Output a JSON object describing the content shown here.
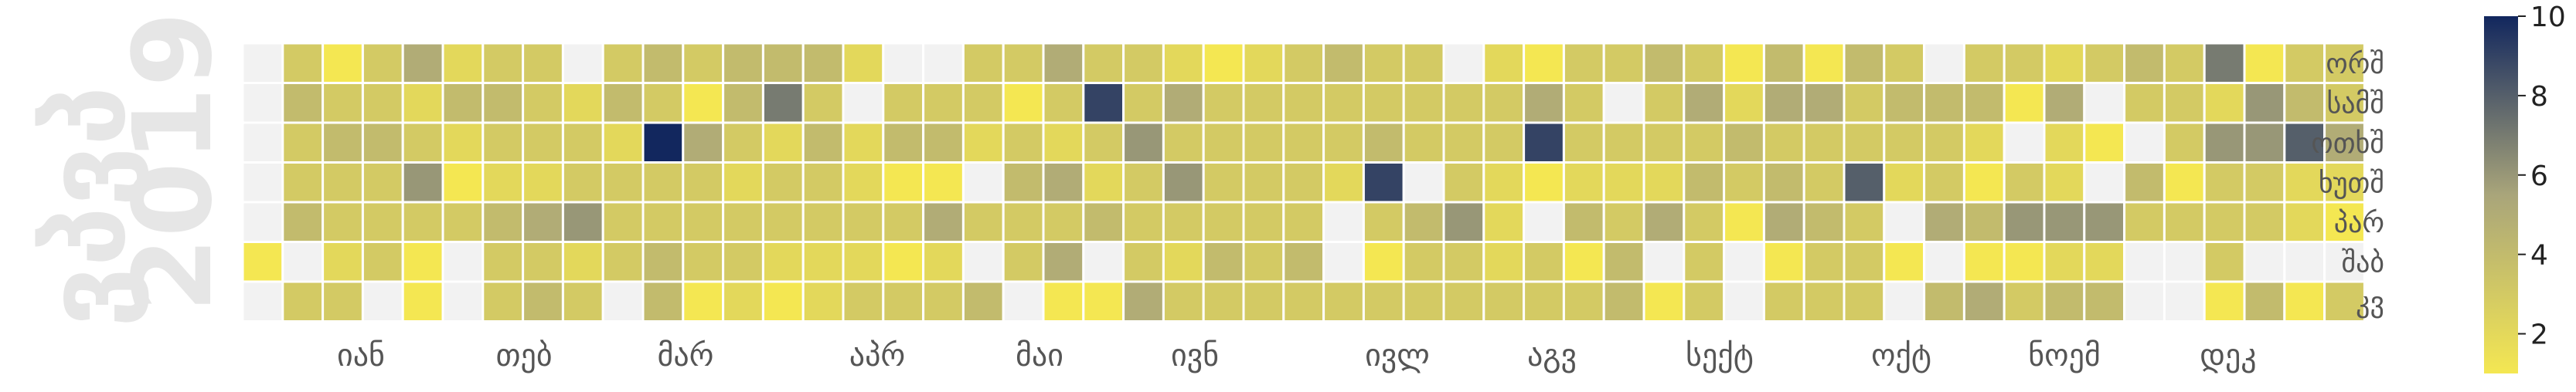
{
  "chart_data": {
    "type": "heatmap",
    "title": "ვპვპ 2019",
    "year_label": "2019",
    "watermark": "ვპვპ",
    "month_labels": [
      "იან",
      "თებ",
      "მარ",
      "აპრ",
      "მაი",
      "ივნ",
      "ივლ",
      "აგვ",
      "სექტ",
      "ოქტ",
      "ნოემ",
      "დეკ"
    ],
    "day_labels": [
      "ორშ",
      "სამშ",
      "ოთხშ",
      "ხუთშ",
      "პარ",
      "შაბ",
      "კვ"
    ],
    "colorbar": {
      "min": 1,
      "max": 10,
      "ticks": [
        2,
        4,
        6,
        8,
        10
      ]
    },
    "colors": {
      "empty": "#f2f2f2",
      "low": "#f4e752",
      "mid": "#a9a57a",
      "high": "#12275e"
    },
    "legend_position": "right",
    "grid": false,
    "weeks": 53,
    "values": [
      [
        null,
        3,
        1,
        3,
        5,
        2,
        3,
        3,
        null,
        3,
        4,
        3,
        4,
        4,
        4,
        2,
        null,
        null,
        3,
        3,
        5,
        3,
        3,
        2,
        1,
        2,
        3,
        4,
        3,
        3,
        null,
        2,
        1,
        3,
        3,
        4,
        3,
        1,
        4,
        1,
        4,
        3,
        null,
        3,
        3,
        2,
        3,
        4,
        3,
        7,
        1,
        3,
        3
      ],
      [
        null,
        4,
        3,
        3,
        2,
        4,
        4,
        3,
        2,
        4,
        3,
        1,
        4,
        7,
        3,
        null,
        3,
        3,
        3,
        1,
        3,
        9,
        3,
        5,
        3,
        3,
        3,
        3,
        3,
        3,
        3,
        3,
        5,
        3,
        null,
        3,
        5,
        2,
        5,
        5,
        3,
        4,
        4,
        4,
        1,
        5,
        null,
        3,
        3,
        2,
        6,
        4,
        3
      ],
      [
        null,
        3,
        4,
        4,
        3,
        2,
        3,
        3,
        3,
        2,
        10,
        5,
        3,
        2,
        4,
        2,
        4,
        4,
        2,
        3,
        2,
        3,
        6,
        3,
        3,
        3,
        3,
        3,
        4,
        3,
        3,
        3,
        9,
        3,
        3,
        3,
        3,
        4,
        3,
        3,
        3,
        3,
        3,
        2,
        null,
        2,
        1,
        null,
        3,
        6,
        6,
        8,
        5
      ],
      [
        null,
        3,
        3,
        3,
        6,
        1,
        2,
        2,
        3,
        3,
        3,
        3,
        2,
        3,
        3,
        2,
        1,
        1,
        null,
        4,
        5,
        2,
        3,
        6,
        3,
        3,
        3,
        2,
        9,
        null,
        3,
        2,
        1,
        2,
        2,
        2,
        4,
        3,
        4,
        3,
        8,
        2,
        3,
        1,
        3,
        2,
        null,
        4,
        1,
        3,
        3,
        2,
        2
      ],
      [
        null,
        4,
        3,
        3,
        3,
        3,
        4,
        5,
        6,
        3,
        3,
        3,
        3,
        3,
        3,
        3,
        3,
        5,
        3,
        3,
        3,
        4,
        3,
        3,
        3,
        3,
        3,
        null,
        3,
        4,
        6,
        2,
        null,
        4,
        3,
        5,
        3,
        1,
        5,
        4,
        3,
        null,
        5,
        4,
        6,
        6,
        6,
        3,
        3,
        3,
        3,
        2,
        1
      ],
      [
        1,
        null,
        2,
        3,
        1,
        null,
        3,
        3,
        2,
        3,
        4,
        3,
        3,
        2,
        2,
        2,
        1,
        2,
        null,
        3,
        5,
        null,
        3,
        2,
        4,
        3,
        4,
        null,
        1,
        3,
        3,
        2,
        3,
        1,
        4,
        null,
        3,
        null,
        1,
        3,
        3,
        1,
        null,
        1,
        1,
        2,
        2,
        null,
        null,
        3,
        null,
        null,
        null
      ],
      [
        null,
        3,
        3,
        null,
        1,
        null,
        3,
        4,
        3,
        null,
        4,
        1,
        2,
        1,
        2,
        3,
        3,
        3,
        4,
        null,
        1,
        1,
        5,
        3,
        3,
        3,
        3,
        3,
        3,
        3,
        3,
        3,
        3,
        3,
        4,
        1,
        3,
        null,
        3,
        3,
        3,
        null,
        4,
        5,
        3,
        4,
        4,
        null,
        null,
        1,
        4,
        1,
        3
      ]
    ]
  }
}
